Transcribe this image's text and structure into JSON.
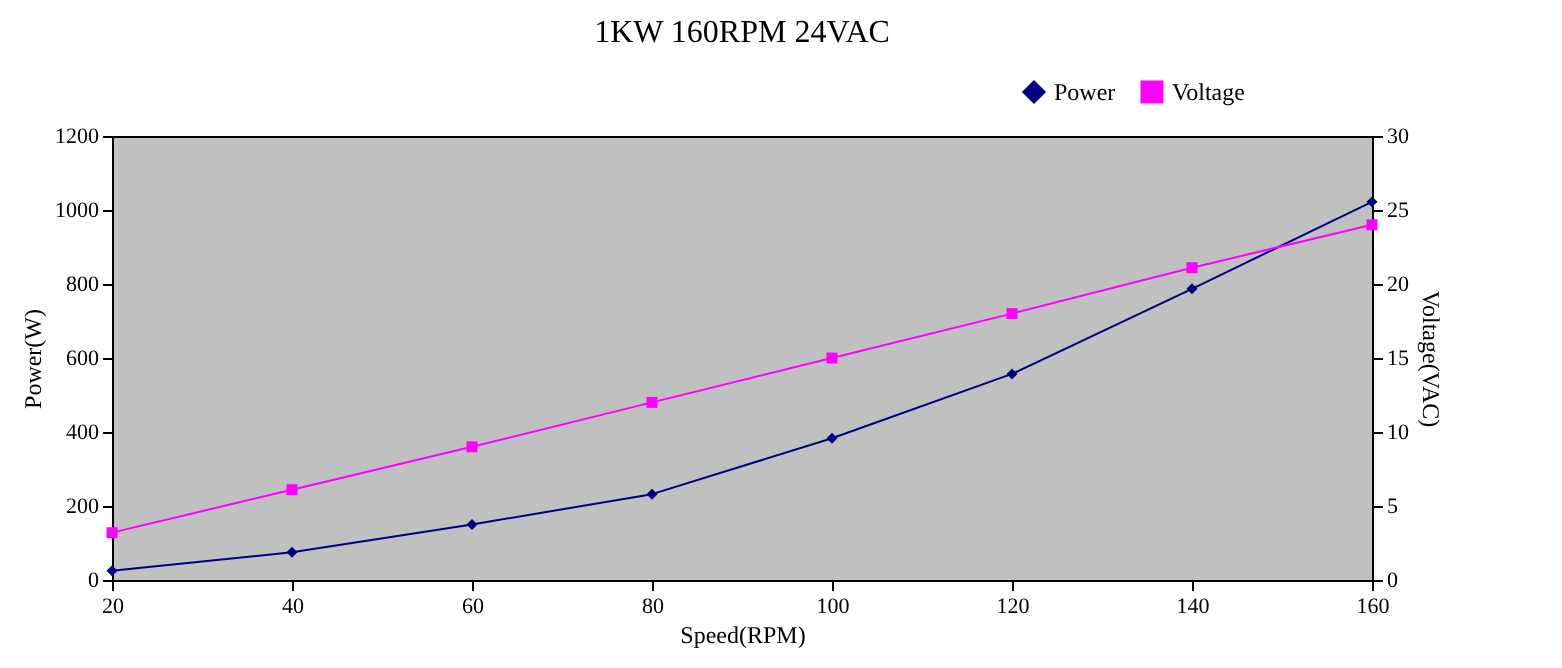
{
  "chart_data": {
    "type": "line",
    "title": "1KW 160RPM 24VAC",
    "xlabel": "Speed(RPM)",
    "ylabel": "Power(W)",
    "y2label": "Voltage(VAC)",
    "x": [
      20,
      40,
      60,
      80,
      100,
      120,
      140,
      160
    ],
    "series": [
      {
        "name": "Power",
        "color": "#000080",
        "marker": "diamond",
        "values": [
          25,
          75,
          150,
          232,
          383,
          557,
          787,
          1022
        ]
      },
      {
        "name": "Voltage",
        "color": "#ff00ff",
        "marker": "square",
        "axis": "y2",
        "values": [
          3.2,
          6.1,
          9,
          12,
          15,
          18,
          21.1,
          24
        ]
      }
    ],
    "xlim": [
      20,
      160
    ],
    "xticks": [
      20,
      40,
      60,
      80,
      100,
      120,
      140,
      160
    ],
    "ylim": [
      0,
      1200
    ],
    "yticks": [
      0,
      200,
      400,
      600,
      800,
      1000,
      1200
    ],
    "y2lim": [
      0,
      30
    ],
    "y2ticks": [
      0,
      5,
      10,
      15,
      20,
      25,
      30
    ],
    "legend": "top right",
    "grid": false,
    "line_style": "solid"
  }
}
